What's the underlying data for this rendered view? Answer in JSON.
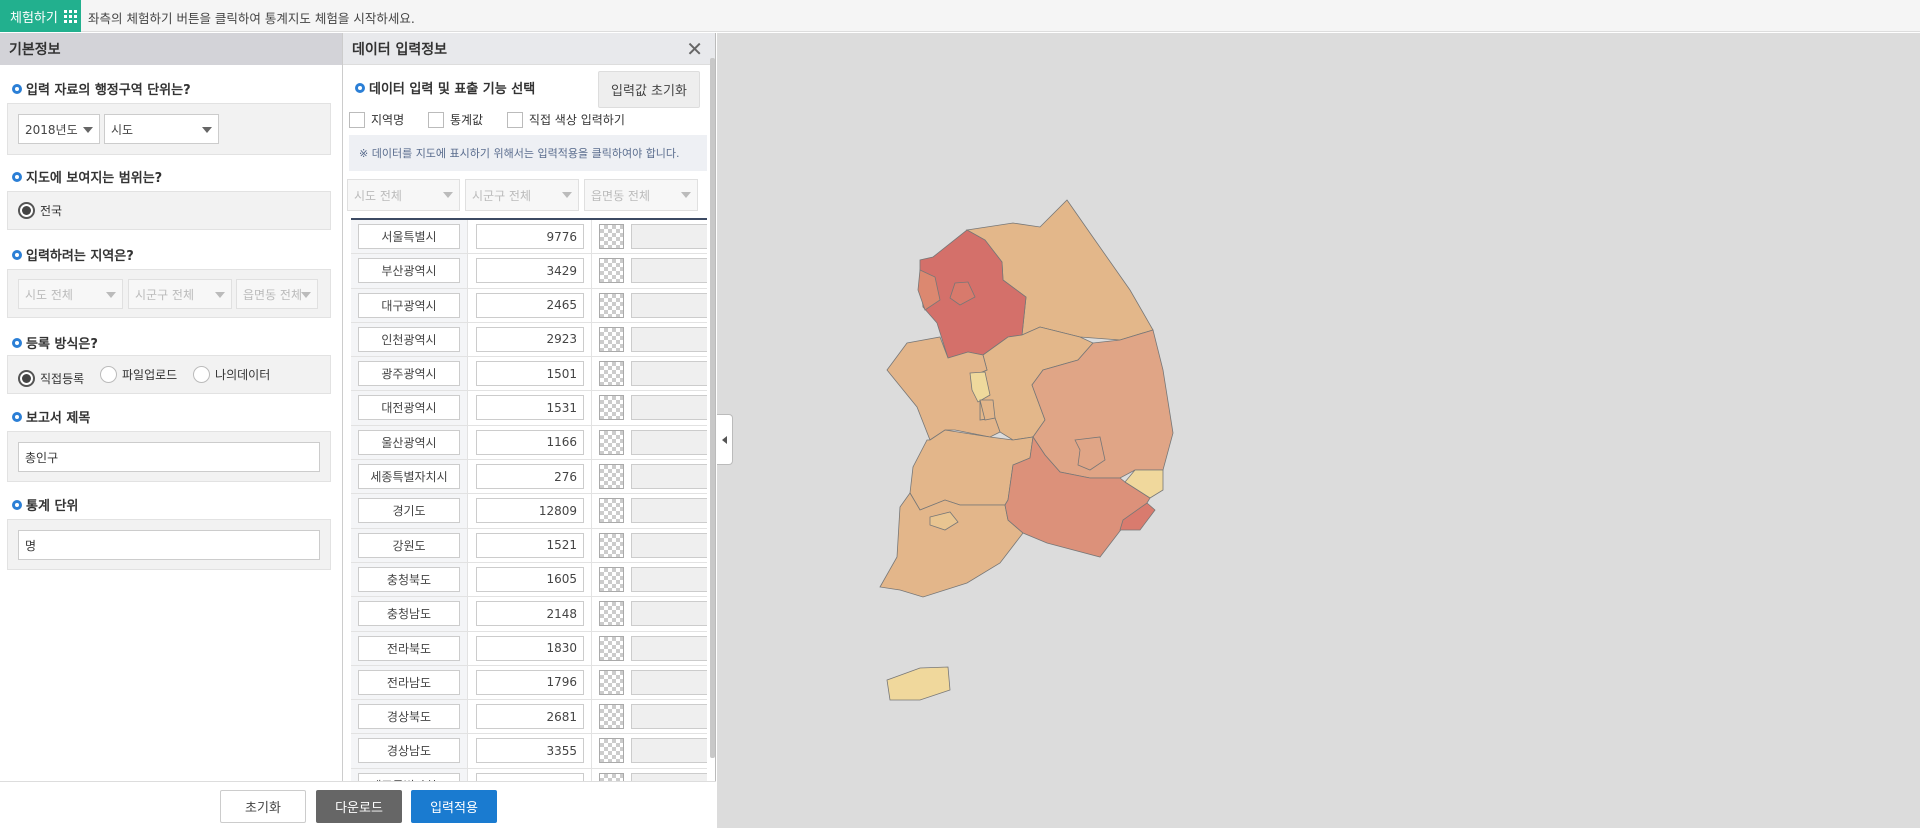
{
  "topbar": {
    "try_button": "체험하기",
    "message": "좌측의 체험하기 버튼을 클릭하여 통계지도 체험을 시작하세요."
  },
  "left": {
    "title": "기본정보",
    "q1": "입력 자료의 행정구역 단위는?",
    "year": "2018년도",
    "level": "시도",
    "q2": "지도에 보여지는 범위는?",
    "scope": "전국",
    "q3": "입력하려는 지역은?",
    "sido": "시도 전체",
    "sigungu": "시군구 전체",
    "eupmyeondong": "읍면동 전체",
    "q4": "등록 방식은?",
    "methods": [
      {
        "label": "직접등록",
        "checked": true
      },
      {
        "label": "파일업로드",
        "checked": false
      },
      {
        "label": "나의데이터",
        "checked": false
      }
    ],
    "q5": "보고서 제목",
    "report_title": "총인구",
    "q6": "통계 단위",
    "unit": "명"
  },
  "footer": {
    "reset": "초기화",
    "download": "다운로드",
    "apply": "입력적용",
    "apply_color": "#1a7bd0",
    "download_color": "#666666"
  },
  "mid": {
    "title": "데이터 입력정보",
    "section": "데이터 입력 및 표출 기능 선택",
    "reset_input": "입력값 초기화",
    "checkboxes": [
      "지역명",
      "통계값",
      "직접 색상 입력하기"
    ],
    "notice": "※ 데이터를 지도에 표시하기 위해서는 입력적용을 클릭하여야 합니다.",
    "filter": {
      "sido": "시도 전체",
      "sigungu": "시군구 전체",
      "eupmyeondong": "읍면동 전체"
    },
    "rows": [
      {
        "name": "서울특별시",
        "value": "9776"
      },
      {
        "name": "부산광역시",
        "value": "3429"
      },
      {
        "name": "대구광역시",
        "value": "2465"
      },
      {
        "name": "인천광역시",
        "value": "2923"
      },
      {
        "name": "광주광역시",
        "value": "1501"
      },
      {
        "name": "대전광역시",
        "value": "1531"
      },
      {
        "name": "울산광역시",
        "value": "1166"
      },
      {
        "name": "세종특별자치시",
        "value": "276"
      },
      {
        "name": "경기도",
        "value": "12809"
      },
      {
        "name": "강원도",
        "value": "1521"
      },
      {
        "name": "충청북도",
        "value": "1605"
      },
      {
        "name": "충청남도",
        "value": "2148"
      },
      {
        "name": "전라북도",
        "value": "1830"
      },
      {
        "name": "전라남도",
        "value": "1796"
      },
      {
        "name": "경상북도",
        "value": "2681"
      },
      {
        "name": "경상남도",
        "value": "3355"
      },
      {
        "name": "제주특별자치도",
        "value": ""
      }
    ]
  },
  "map": {
    "colors": {
      "gyeonggi": "#d4706a",
      "seoul": "#d87a6c",
      "incheon": "#dc8870",
      "gangwon": "#e3b78a",
      "chungbuk": "#e3b78a",
      "chungnam": "#e3b58a",
      "sejong": "#efd99c",
      "daejeon": "#e3b68a",
      "jeonbuk": "#e3b68a",
      "jeonnam": "#e3b68a",
      "gwangju": "#e9c591",
      "gyeongbuk": "#e0a586",
      "daegu": "#e0a586",
      "ulsan": "#f0d89c",
      "gyeongnam": "#dc917a",
      "busan": "#d97b6e",
      "jeju": "#f0d89c"
    }
  }
}
